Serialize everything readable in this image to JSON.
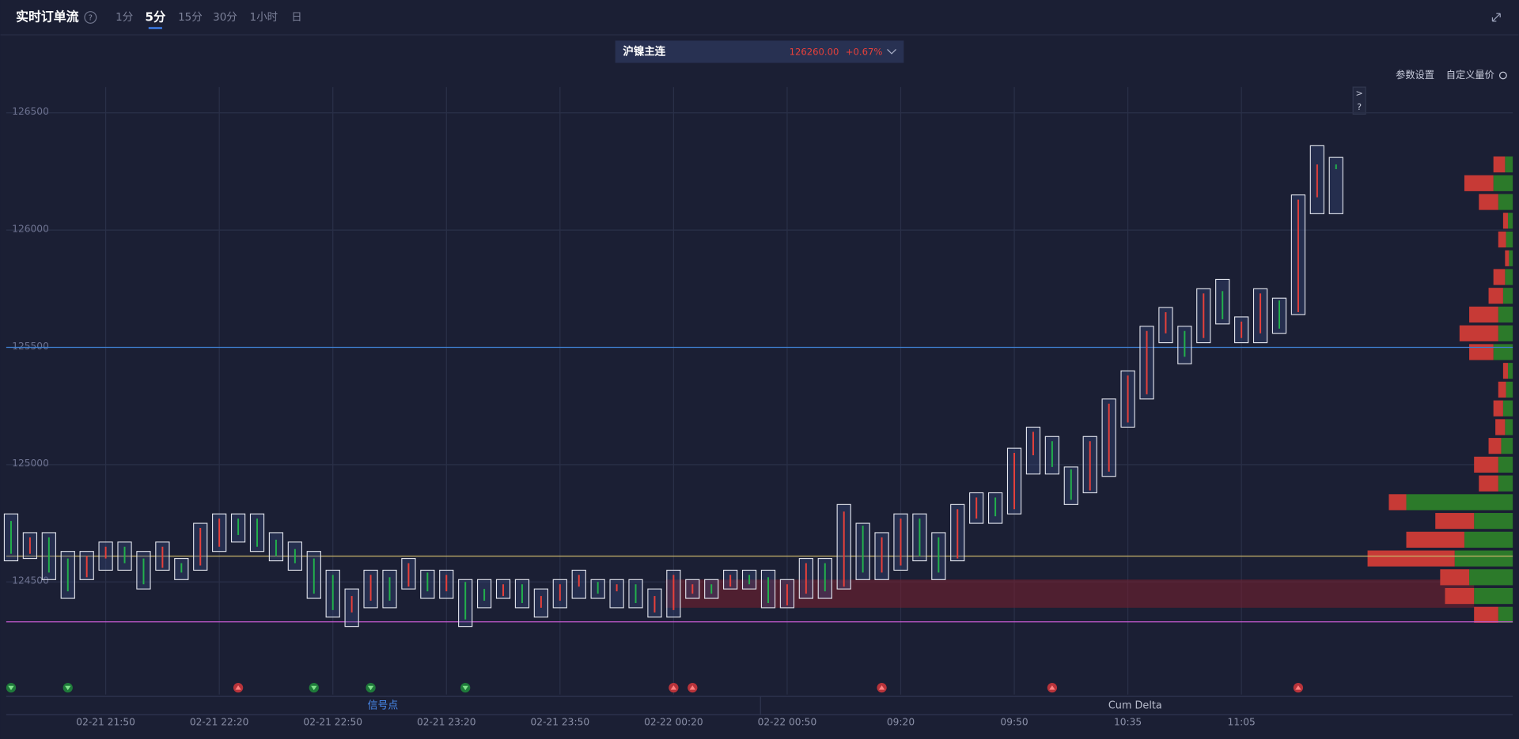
{
  "header": {
    "title": "实时订单流",
    "help": "?",
    "tabs": [
      "1分",
      "5分",
      "15分",
      "30分",
      "1小时",
      "日"
    ],
    "active_tab": 1
  },
  "instrument": {
    "name": "沪镍主连",
    "price": "126260.00",
    "change": "+0.67%"
  },
  "toolbar": [
    "参数设置",
    "自定义量价"
  ],
  "side_buttons": [
    ">",
    "?"
  ],
  "bottom_tabs": [
    "信号点",
    "Cum Delta"
  ],
  "active_bottom_tab": 0,
  "chart_data": {
    "type": "candlestick",
    "categories": [
      null,
      null,
      null,
      null,
      null,
      "02-21 21:50",
      null,
      null,
      null,
      null,
      null,
      "02-21 22:20",
      null,
      null,
      null,
      null,
      null,
      "02-21 22:50",
      null,
      null,
      null,
      null,
      null,
      "02-21 23:20",
      null,
      null,
      null,
      null,
      null,
      "02-21 23:50",
      null,
      null,
      null,
      null,
      null,
      "02-22 00:20",
      null,
      null,
      null,
      null,
      null,
      "02-22 00:50",
      null,
      null,
      null,
      null,
      null,
      "09:20",
      null,
      null,
      null,
      null,
      null,
      "09:50",
      null,
      null,
      null,
      null,
      null,
      "10:35",
      null,
      null,
      null,
      null,
      null,
      "11:05",
      null,
      null,
      null,
      null,
      null
    ],
    "high": [
      124790,
      124710,
      124710,
      124630,
      124630,
      124670,
      124670,
      124630,
      124670,
      124600,
      124750,
      124790,
      124790,
      124790,
      124710,
      124670,
      124630,
      124550,
      124470,
      124550,
      124550,
      124600,
      124550,
      124550,
      124510,
      124510,
      124510,
      124510,
      124470,
      124510,
      124550,
      124510,
      124510,
      124510,
      124470,
      124550,
      124510,
      124510,
      124550,
      124550,
      124550,
      124510,
      124600,
      124600,
      124830,
      124750,
      124710,
      124790,
      124790,
      124710,
      124830,
      124880,
      124880,
      125070,
      125160,
      125120,
      124990,
      125120,
      125280,
      125400,
      125590,
      125670,
      125590,
      125750,
      125790,
      125630,
      125750,
      125710,
      126150,
      126360,
      126310
    ],
    "low": [
      124590,
      124600,
      124510,
      124430,
      124510,
      124550,
      124550,
      124470,
      124550,
      124510,
      124550,
      124630,
      124670,
      124630,
      124590,
      124550,
      124430,
      124350,
      124310,
      124390,
      124390,
      124470,
      124430,
      124430,
      124310,
      124390,
      124430,
      124390,
      124350,
      124390,
      124430,
      124430,
      124390,
      124390,
      124350,
      124350,
      124430,
      124430,
      124470,
      124470,
      124390,
      124390,
      124430,
      124430,
      124470,
      124510,
      124510,
      124550,
      124590,
      124510,
      124590,
      124750,
      124750,
      124790,
      124960,
      124960,
      124830,
      124880,
      124950,
      125160,
      125280,
      125520,
      125430,
      125520,
      125600,
      125520,
      125520,
      125560,
      125640,
      126070,
      126070
    ],
    "open": [
      124760,
      124620,
      124690,
      124600,
      124520,
      124600,
      124650,
      124600,
      124560,
      124580,
      124570,
      124650,
      124770,
      124770,
      124680,
      124640,
      124600,
      124530,
      124370,
      124420,
      124520,
      124480,
      124540,
      124460,
      124500,
      124470,
      124440,
      124490,
      124390,
      124420,
      124480,
      124500,
      124460,
      124490,
      124370,
      124380,
      124450,
      124490,
      124480,
      124530,
      124520,
      124400,
      124450,
      124580,
      124480,
      124740,
      124540,
      124570,
      124770,
      124690,
      124600,
      124770,
      124860,
      124810,
      125040,
      125100,
      124980,
      124890,
      124970,
      125180,
      125300,
      125560,
      125570,
      125540,
      125740,
      125540,
      125560,
      125700,
      125650,
      126140,
      126280
    ],
    "close": [
      124620,
      124690,
      124540,
      124460,
      124610,
      124650,
      124580,
      124490,
      124650,
      124540,
      124730,
      124770,
      124700,
      124650,
      124610,
      124580,
      124450,
      124380,
      124440,
      124530,
      124420,
      124580,
      124460,
      124530,
      124340,
      124420,
      124490,
      124410,
      124440,
      124490,
      124530,
      124450,
      124490,
      124410,
      124440,
      124530,
      124490,
      124450,
      124530,
      124490,
      124410,
      124490,
      124580,
      124460,
      124800,
      124540,
      124690,
      124770,
      124610,
      124540,
      124810,
      124860,
      124780,
      125050,
      125140,
      124990,
      124850,
      125100,
      125260,
      125380,
      125570,
      125650,
      125460,
      125730,
      125620,
      125610,
      125730,
      125580,
      126130,
      126280,
      126260
    ],
    "up_color": "#e8403a",
    "down_color": "#22b14c",
    "ylim": [
      124020,
      126610
    ],
    "yticks": [
      124500,
      125000,
      125500,
      126000,
      126500
    ],
    "grid": true,
    "levels": [
      {
        "value": 125500,
        "color": "#3f7fd0"
      },
      {
        "value": 124610,
        "color": "#c9b46a"
      },
      {
        "value": 124330,
        "color": "#c45ad0"
      }
    ],
    "zone": {
      "range": [
        124390,
        124510
      ],
      "color": "#7a1f2e"
    },
    "profile": {
      "prices": [
        124360,
        124440,
        124520,
        124600,
        124680,
        124760,
        124840,
        124920,
        125000,
        125080,
        125160,
        125240,
        125320,
        125400,
        125480,
        125560,
        125640,
        125720,
        125800,
        125880,
        125960,
        126040,
        126120,
        126200,
        126280
      ],
      "buy": [
        15,
        40,
        45,
        60,
        50,
        40,
        110,
        15,
        15,
        12,
        8,
        10,
        7,
        5,
        20,
        15,
        15,
        10,
        8,
        4,
        7,
        5,
        15,
        20,
        8
      ],
      "sell": [
        25,
        30,
        30,
        90,
        60,
        40,
        18,
        20,
        25,
        13,
        10,
        10,
        8,
        5,
        25,
        40,
        30,
        15,
        12,
        4,
        8,
        5,
        20,
        30,
        12
      ],
      "buy_color": "#2c7a2a",
      "sell_color": "#c73a36"
    },
    "signals": [
      {
        "index": 0,
        "direction": "down"
      },
      {
        "index": 3,
        "direction": "down"
      },
      {
        "index": 12,
        "direction": "up"
      },
      {
        "index": 16,
        "direction": "down"
      },
      {
        "index": 19,
        "direction": "down"
      },
      {
        "index": 24,
        "direction": "down"
      },
      {
        "index": 35,
        "direction": "up"
      },
      {
        "index": 36,
        "direction": "up"
      },
      {
        "index": 46,
        "direction": "up"
      },
      {
        "index": 55,
        "direction": "up"
      },
      {
        "index": 68,
        "direction": "up"
      }
    ]
  }
}
